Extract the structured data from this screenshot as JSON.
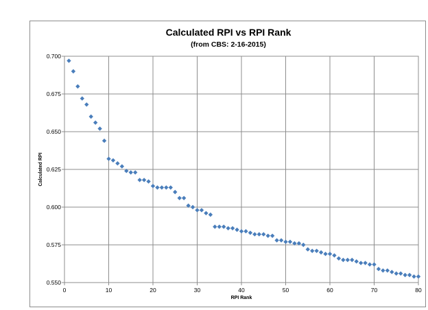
{
  "chart_data": {
    "type": "scatter",
    "title": "Calculated  RPI vs RPI Rank",
    "subtitle": "(from CBS: 2-16-2015)",
    "xlabel": "RPI Rank",
    "ylabel": "Calculated RPI",
    "xlim": [
      0,
      80
    ],
    "ylim": [
      0.55,
      0.7
    ],
    "xticks": [
      "0",
      "10",
      "20",
      "30",
      "40",
      "50",
      "60",
      "70",
      "80"
    ],
    "yticks": [
      "0.550",
      "0.575",
      "0.600",
      "0.625",
      "0.650",
      "0.675",
      "0.700"
    ],
    "grid": true,
    "legend": "none",
    "marker_color": "#4a7ebb",
    "series": [
      {
        "x": [
          1,
          2,
          3,
          4,
          5,
          6,
          7,
          8,
          9,
          10,
          11,
          12,
          13,
          14,
          15,
          16,
          17,
          18,
          19,
          20,
          21,
          22,
          23,
          24,
          25,
          26,
          27,
          28,
          29,
          30,
          31,
          32,
          33,
          34,
          35,
          36,
          37,
          38,
          39,
          40,
          41,
          42,
          43,
          44,
          45,
          46,
          47,
          48,
          49,
          50,
          51,
          52,
          53,
          54,
          55,
          56,
          57,
          58,
          59,
          60,
          61,
          62,
          63,
          64,
          65,
          66,
          67,
          68,
          69,
          70,
          71,
          72,
          73,
          74,
          75,
          76,
          77,
          78,
          79,
          80
        ],
        "values": [
          0.697,
          0.69,
          0.68,
          0.672,
          0.668,
          0.66,
          0.656,
          0.652,
          0.644,
          0.632,
          0.631,
          0.629,
          0.627,
          0.624,
          0.623,
          0.623,
          0.618,
          0.618,
          0.617,
          0.614,
          0.613,
          0.613,
          0.613,
          0.613,
          0.61,
          0.606,
          0.606,
          0.601,
          0.6,
          0.598,
          0.598,
          0.596,
          0.595,
          0.587,
          0.587,
          0.587,
          0.586,
          0.586,
          0.585,
          0.584,
          0.584,
          0.583,
          0.582,
          0.582,
          0.582,
          0.581,
          0.581,
          0.578,
          0.578,
          0.577,
          0.577,
          0.576,
          0.576,
          0.575,
          0.572,
          0.571,
          0.571,
          0.57,
          0.569,
          0.569,
          0.568,
          0.566,
          0.565,
          0.565,
          0.565,
          0.564,
          0.563,
          0.563,
          0.562,
          0.562,
          0.559,
          0.558,
          0.558,
          0.557,
          0.556,
          0.556,
          0.555,
          0.555,
          0.554,
          0.554
        ]
      }
    ]
  }
}
